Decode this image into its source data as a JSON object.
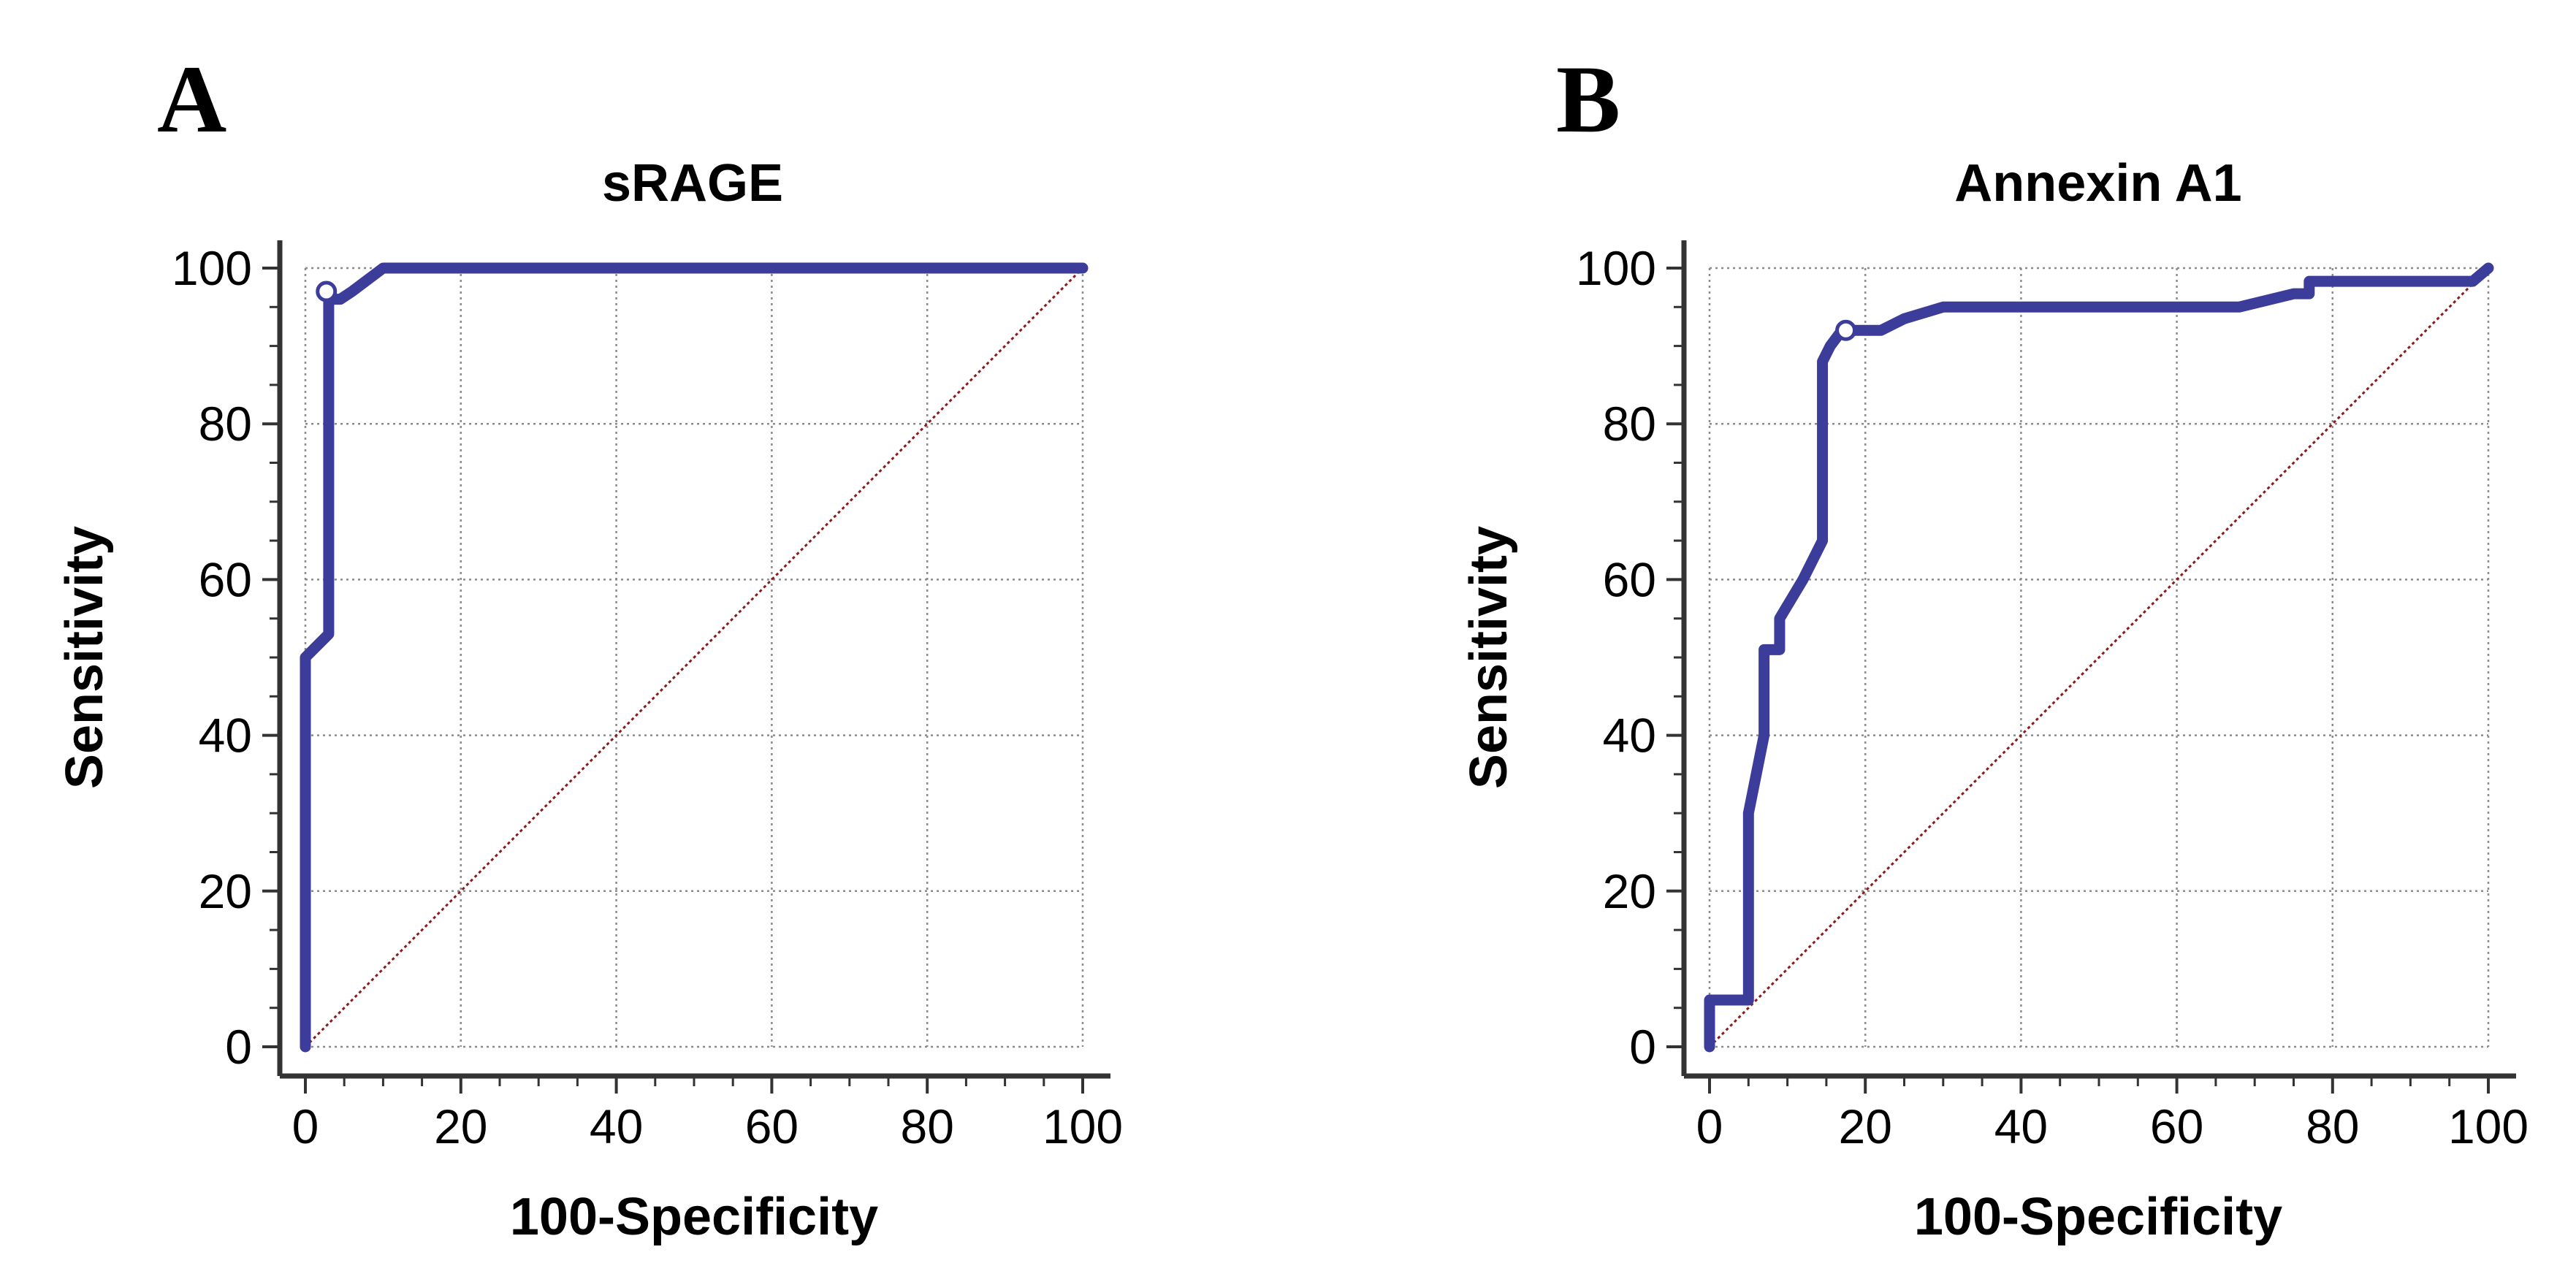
{
  "colors": {
    "roc_line": "#3c3c9a",
    "reference_line": "#8b1a1a",
    "grid": "#8c8c8c",
    "axis": "#333333"
  },
  "chart_data": [
    {
      "type": "line",
      "panel_label": "A",
      "title": "sRAGE",
      "xlabel": "100-Specificity",
      "ylabel": "Sensitivity",
      "xlim": [
        0,
        100
      ],
      "ylim": [
        0,
        100
      ],
      "xticks": [
        "0",
        "20",
        "40",
        "60",
        "80",
        "100"
      ],
      "yticks": [
        "0",
        "20",
        "40",
        "60",
        "80",
        "100"
      ],
      "grid": true,
      "series": [
        {
          "name": "ROC curve",
          "x": [
            0,
            0,
            0,
            3,
            3,
            3,
            3,
            4.5,
            6,
            10,
            100
          ],
          "y": [
            0,
            50,
            50,
            53,
            53,
            96,
            96,
            96,
            97,
            100,
            100
          ]
        },
        {
          "name": "Reference line",
          "x": [
            0,
            100
          ],
          "y": [
            0,
            100
          ]
        }
      ],
      "cutoff_point": {
        "x": 2.7,
        "y": 97
      }
    },
    {
      "type": "line",
      "panel_label": "B",
      "title": "Annexin A1",
      "xlabel": "100-Specificity",
      "ylabel": "Sensitivity",
      "xlim": [
        0,
        100
      ],
      "ylim": [
        0,
        100
      ],
      "xticks": [
        "0",
        "20",
        "40",
        "60",
        "80",
        "100"
      ],
      "yticks": [
        "0",
        "20",
        "40",
        "60",
        "80",
        "100"
      ],
      "grid": true,
      "series": [
        {
          "name": "ROC curve",
          "x": [
            0,
            0,
            0,
            5,
            5,
            5,
            7,
            7,
            7,
            9,
            9,
            12,
            14.5,
            14.5,
            15.5,
            17,
            17,
            20,
            22,
            25,
            30,
            50,
            68,
            75,
            77,
            77,
            78,
            78,
            98,
            100
          ],
          "y": [
            0,
            6,
            6,
            6,
            6,
            30,
            40,
            51,
            51,
            51,
            55,
            60,
            65,
            88,
            90,
            92,
            92,
            92,
            92,
            93.5,
            95,
            95,
            95,
            96.7,
            96.7,
            98.3,
            98.3,
            98.3,
            98.3,
            100
          ]
        },
        {
          "name": "Reference line",
          "x": [
            0,
            100
          ],
          "y": [
            0,
            100
          ]
        }
      ],
      "cutoff_point": {
        "x": 17.5,
        "y": 92
      }
    }
  ]
}
